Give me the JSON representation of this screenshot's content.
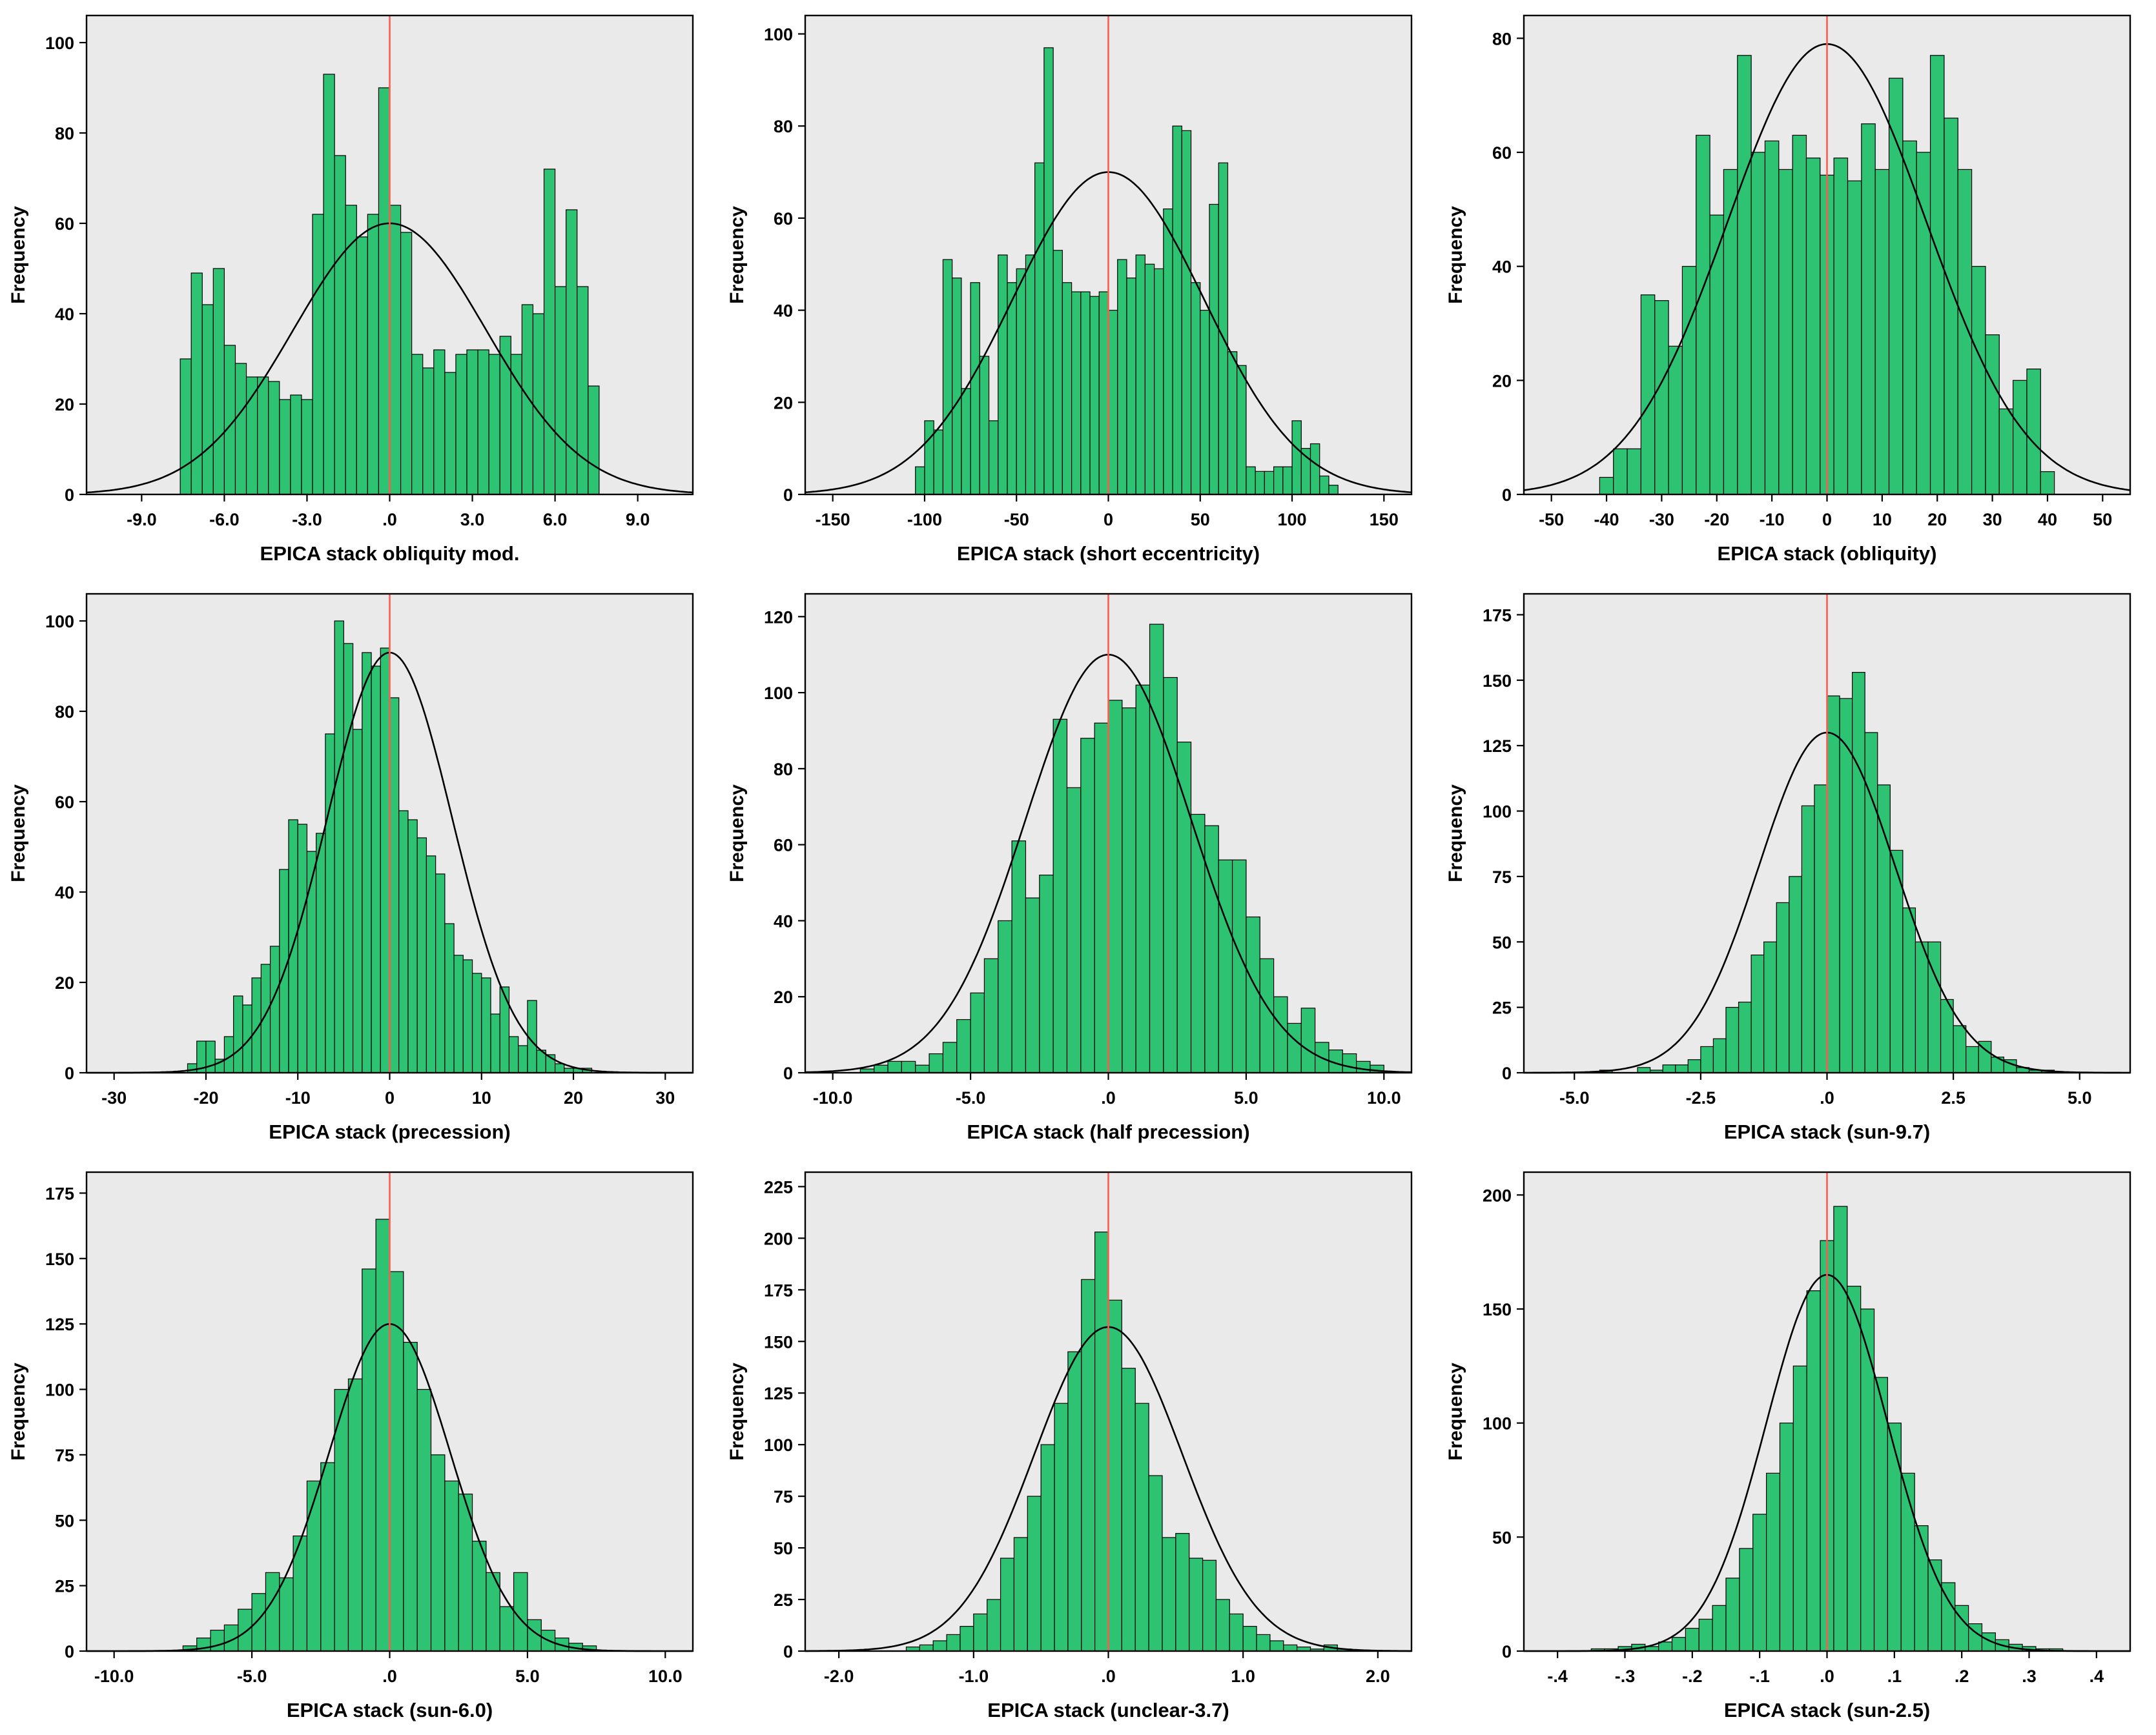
{
  "page": {
    "background": "#ffffff"
  },
  "colors": {
    "bar": "#2ec273",
    "bar_border": "#000000",
    "curve": "#000000",
    "refline": "#ff5a52",
    "plot_bg": "#eaeaea",
    "frame": "#000000",
    "text": "#000000"
  },
  "chart_data": [
    {
      "type": "bar",
      "subtype": "histogram",
      "title": "EPICA stack obliquity mod.",
      "ylabel": "Frequency",
      "xlim": [
        -11,
        11
      ],
      "ylim": [
        0,
        106
      ],
      "xtick_values": [
        -9,
        -6,
        -3,
        0,
        3,
        6,
        9
      ],
      "xtick_labels": [
        "-9.0",
        "-6.0",
        "-3.0",
        ".0",
        "3.0",
        "6.0",
        "9.0"
      ],
      "yticks": [
        0,
        20,
        40,
        60,
        80,
        100
      ],
      "bins": {
        "start": -7.6,
        "width": 0.4,
        "counts": [
          30,
          49,
          42,
          50,
          33,
          29,
          26,
          26,
          25,
          21,
          22,
          21,
          62,
          93,
          75,
          64,
          57,
          62,
          90,
          64,
          58,
          31,
          28,
          32,
          27,
          31,
          32,
          32,
          31,
          35,
          31,
          42,
          40,
          72,
          46,
          63,
          46,
          24
        ]
      },
      "normal_curve": {
        "mean": 0,
        "sd": 3.5,
        "peak": 60
      },
      "refline_x": 0,
      "grid": false,
      "legend": "none"
    },
    {
      "type": "bar",
      "subtype": "histogram",
      "title": "EPICA stack (short eccentricity)",
      "ylabel": "Frequency",
      "xlim": [
        -165,
        165
      ],
      "ylim": [
        0,
        104
      ],
      "xtick_values": [
        -150,
        -100,
        -50,
        0,
        50,
        100,
        150
      ],
      "xtick_labels": [
        "-150",
        "-100",
        "-50",
        "0",
        "50",
        "100",
        "150"
      ],
      "yticks": [
        0,
        20,
        40,
        60,
        80,
        100
      ],
      "bins": {
        "start": -105,
        "width": 5,
        "counts": [
          6,
          16,
          14,
          51,
          47,
          23,
          46,
          30,
          16,
          52,
          46,
          49,
          52,
          72,
          97,
          53,
          46,
          44,
          44,
          43,
          44,
          40,
          51,
          47,
          52,
          50,
          49,
          62,
          80,
          79,
          46,
          40,
          63,
          72,
          31,
          28,
          6,
          5,
          5,
          6,
          6,
          16,
          10,
          11,
          4,
          2
        ]
      },
      "normal_curve": {
        "mean": 0,
        "sd": 52,
        "peak": 70
      },
      "refline_x": 0,
      "grid": false,
      "legend": "none"
    },
    {
      "type": "bar",
      "subtype": "histogram",
      "title": "EPICA stack (obliquity)",
      "ylabel": "Frequency",
      "xlim": [
        -55,
        55
      ],
      "ylim": [
        0,
        84
      ],
      "xtick_values": [
        -50,
        -40,
        -30,
        -20,
        -10,
        0,
        10,
        20,
        30,
        40,
        50
      ],
      "xtick_labels": [
        "-50",
        "-40",
        "-30",
        "-20",
        "-10",
        "0",
        "10",
        "20",
        "30",
        "40",
        "50"
      ],
      "yticks": [
        0,
        20,
        40,
        60,
        80
      ],
      "bins": {
        "start": -41.25,
        "width": 2.5,
        "counts": [
          3,
          8,
          8,
          35,
          34,
          26,
          40,
          63,
          49,
          57,
          77,
          60,
          62,
          57,
          63,
          59,
          56,
          59,
          55,
          65,
          57,
          73,
          62,
          60,
          77,
          66,
          57,
          40,
          28,
          15,
          20,
          22,
          4
        ]
      },
      "normal_curve": {
        "mean": 0,
        "sd": 18,
        "peak": 79
      },
      "refline_x": 0,
      "grid": false,
      "legend": "none"
    },
    {
      "type": "bar",
      "subtype": "histogram",
      "title": "EPICA stack (precession)",
      "ylabel": "Frequency",
      "xlim": [
        -33,
        33
      ],
      "ylim": [
        0,
        106
      ],
      "xtick_values": [
        -30,
        -20,
        -10,
        0,
        10,
        20,
        30
      ],
      "xtick_labels": [
        "-30",
        "-20",
        "-10",
        "0",
        "10",
        "20",
        "30"
      ],
      "yticks": [
        0,
        20,
        40,
        60,
        80,
        100
      ],
      "bins": {
        "start": -22,
        "width": 1,
        "counts": [
          2,
          7,
          7,
          3,
          8,
          17,
          15,
          21,
          24,
          28,
          45,
          56,
          55,
          49,
          53,
          75,
          100,
          95,
          76,
          93,
          90,
          94,
          83,
          58,
          56,
          52,
          48,
          44,
          33,
          26,
          25,
          22,
          21,
          13,
          19,
          8,
          6,
          16,
          5,
          4,
          2,
          1,
          1,
          1
        ]
      },
      "normal_curve": {
        "mean": 0,
        "sd": 6.8,
        "peak": 93
      },
      "refline_x": 0,
      "grid": false,
      "legend": "none"
    },
    {
      "type": "bar",
      "subtype": "histogram",
      "title": "EPICA stack (half precession)",
      "ylabel": "Frequency",
      "xlim": [
        -11,
        11
      ],
      "ylim": [
        0,
        126
      ],
      "xtick_values": [
        -10,
        -5,
        0,
        5,
        10
      ],
      "xtick_labels": [
        "-10.0",
        "-5.0",
        ".0",
        "5.0",
        "10.0"
      ],
      "yticks": [
        0,
        20,
        40,
        60,
        80,
        100,
        120
      ],
      "bins": {
        "start": -10,
        "width": 0.5,
        "counts": [
          0,
          0,
          1,
          2,
          3,
          3,
          2,
          5,
          8,
          14,
          21,
          30,
          40,
          61,
          46,
          52,
          93,
          75,
          88,
          92,
          98,
          96,
          102,
          118,
          104,
          87,
          68,
          65,
          56,
          56,
          41,
          30,
          20,
          13,
          17,
          8,
          6,
          5,
          3,
          2
        ]
      },
      "normal_curve": {
        "mean": 0,
        "sd": 3.0,
        "peak": 110
      },
      "refline_x": 0,
      "grid": false,
      "legend": "none"
    },
    {
      "type": "bar",
      "subtype": "histogram",
      "title": "EPICA stack (sun-9.7)",
      "ylabel": "Frequency",
      "xlim": [
        -6,
        6
      ],
      "ylim": [
        0,
        183
      ],
      "xtick_values": [
        -5,
        -2.5,
        0,
        2.5,
        5
      ],
      "xtick_labels": [
        "-5.0",
        "-2.5",
        ".0",
        "2.5",
        "5.0"
      ],
      "yticks": [
        0,
        25,
        50,
        75,
        100,
        125,
        150,
        175
      ],
      "bins": {
        "start": -4.5,
        "width": 0.25,
        "counts": [
          1,
          0,
          0,
          2,
          1,
          3,
          3,
          5,
          10,
          13,
          25,
          27,
          45,
          50,
          65,
          75,
          102,
          110,
          144,
          143,
          153,
          130,
          110,
          85,
          63,
          50,
          50,
          28,
          18,
          10,
          12,
          6,
          5,
          2,
          1,
          1
        ]
      },
      "normal_curve": {
        "mean": 0,
        "sd": 1.35,
        "peak": 130
      },
      "refline_x": 0,
      "grid": false,
      "legend": "none"
    },
    {
      "type": "bar",
      "subtype": "histogram",
      "title": "EPICA stack (sun-6.0)",
      "ylabel": "Frequency",
      "xlim": [
        -11,
        11
      ],
      "ylim": [
        0,
        183
      ],
      "xtick_values": [
        -10,
        -5,
        0,
        5,
        10
      ],
      "xtick_labels": [
        "-10.0",
        "-5.0",
        ".0",
        "5.0",
        "10.0"
      ],
      "yticks": [
        0,
        25,
        50,
        75,
        100,
        125,
        150,
        175
      ],
      "bins": {
        "start": -7.5,
        "width": 0.5,
        "counts": [
          2,
          5,
          8,
          10,
          16,
          22,
          30,
          28,
          44,
          65,
          72,
          100,
          104,
          146,
          165,
          145,
          118,
          100,
          75,
          65,
          60,
          42,
          30,
          17,
          30,
          12,
          8,
          5,
          3,
          2
        ]
      },
      "normal_curve": {
        "mean": 0,
        "sd": 2.2,
        "peak": 125
      },
      "refline_x": 0,
      "grid": false,
      "legend": "none"
    },
    {
      "type": "bar",
      "subtype": "histogram",
      "title": "EPICA stack (unclear-3.7)",
      "ylabel": "Frequency",
      "xlim": [
        -2.25,
        2.25
      ],
      "ylim": [
        0,
        232
      ],
      "xtick_values": [
        -2,
        -1,
        0,
        1,
        2
      ],
      "xtick_labels": [
        "-2.0",
        "-1.0",
        ".0",
        "1.0",
        "2.0"
      ],
      "yticks": [
        0,
        25,
        50,
        75,
        100,
        125,
        150,
        175,
        200,
        225
      ],
      "bins": {
        "start": -1.5,
        "width": 0.1,
        "counts": [
          2,
          3,
          5,
          8,
          12,
          18,
          25,
          45,
          55,
          75,
          100,
          120,
          145,
          180,
          203,
          170,
          137,
          120,
          85,
          55,
          57,
          45,
          44,
          25,
          18,
          12,
          8,
          5,
          3,
          2,
          1,
          3,
          1
        ]
      },
      "normal_curve": {
        "mean": 0,
        "sd": 0.55,
        "peak": 157
      },
      "refline_x": 0,
      "grid": false,
      "legend": "none"
    },
    {
      "type": "bar",
      "subtype": "histogram",
      "title": "EPICA stack (sun-2.5)",
      "ylabel": "Frequency",
      "xlim": [
        -0.45,
        0.45
      ],
      "ylim": [
        0,
        210
      ],
      "xtick_values": [
        -0.4,
        -0.3,
        -0.2,
        -0.1,
        0,
        0.1,
        0.2,
        0.3,
        0.4
      ],
      "xtick_labels": [
        "-.4",
        "-.3",
        "-.2",
        "-.1",
        ".0",
        ".1",
        ".2",
        ".3",
        ".4"
      ],
      "yticks": [
        0,
        50,
        100,
        150,
        200
      ],
      "bins": {
        "start": -0.35,
        "width": 0.02,
        "counts": [
          1,
          1,
          2,
          3,
          2,
          4,
          6,
          10,
          14,
          20,
          32,
          45,
          60,
          78,
          100,
          125,
          158,
          180,
          195,
          160,
          150,
          120,
          100,
          78,
          55,
          40,
          30,
          20,
          12,
          8,
          5,
          3,
          2,
          1,
          1
        ]
      },
      "normal_curve": {
        "mean": 0,
        "sd": 0.09,
        "peak": 165
      },
      "refline_x": 0,
      "grid": false,
      "legend": "none"
    }
  ]
}
